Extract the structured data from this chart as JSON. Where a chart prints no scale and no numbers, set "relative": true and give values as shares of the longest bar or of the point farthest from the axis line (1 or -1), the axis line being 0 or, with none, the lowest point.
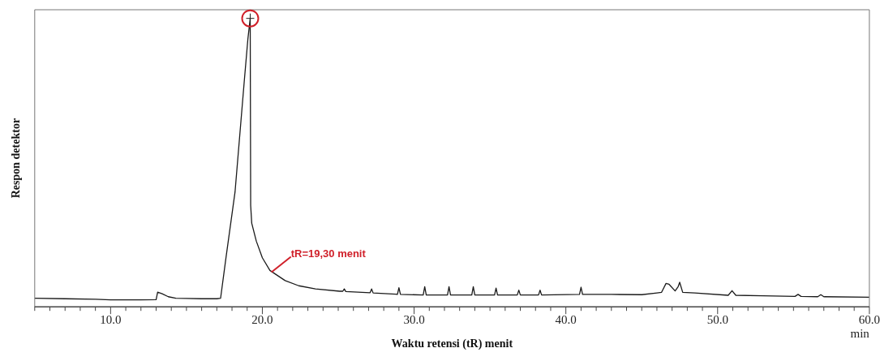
{
  "chart_data": {
    "type": "line",
    "xlabel": "Waktu retensi (tR) menit",
    "ylabel": "Respon detektor",
    "relative": true,
    "grid": false,
    "legend": false,
    "xlim": [
      5,
      60
    ],
    "xticks": [
      {
        "value": 5,
        "label": null
      },
      {
        "value": 6,
        "label": null
      },
      {
        "value": 7,
        "label": null
      },
      {
        "value": 8,
        "label": null
      },
      {
        "value": 9,
        "label": null
      },
      {
        "value": 10,
        "label": "10.0"
      },
      {
        "value": 11,
        "label": null
      },
      {
        "value": 12,
        "label": null
      },
      {
        "value": 13,
        "label": null
      },
      {
        "value": 14,
        "label": null
      },
      {
        "value": 15,
        "label": null
      },
      {
        "value": 16,
        "label": null
      },
      {
        "value": 17,
        "label": null
      },
      {
        "value": 18,
        "label": null
      },
      {
        "value": 19,
        "label": null
      },
      {
        "value": 20,
        "label": "20.0"
      },
      {
        "value": 21,
        "label": null
      },
      {
        "value": 22,
        "label": null
      },
      {
        "value": 23,
        "label": null
      },
      {
        "value": 24,
        "label": null
      },
      {
        "value": 25,
        "label": null
      },
      {
        "value": 26,
        "label": null
      },
      {
        "value": 27,
        "label": null
      },
      {
        "value": 28,
        "label": null
      },
      {
        "value": 29,
        "label": null
      },
      {
        "value": 30,
        "label": "30.0"
      },
      {
        "value": 31,
        "label": null
      },
      {
        "value": 32,
        "label": null
      },
      {
        "value": 33,
        "label": null
      },
      {
        "value": 34,
        "label": null
      },
      {
        "value": 35,
        "label": null
      },
      {
        "value": 36,
        "label": null
      },
      {
        "value": 37,
        "label": null
      },
      {
        "value": 38,
        "label": null
      },
      {
        "value": 39,
        "label": null
      },
      {
        "value": 40,
        "label": "40.0"
      },
      {
        "value": 41,
        "label": null
      },
      {
        "value": 42,
        "label": null
      },
      {
        "value": 43,
        "label": null
      },
      {
        "value": 44,
        "label": null
      },
      {
        "value": 45,
        "label": null
      },
      {
        "value": 46,
        "label": null
      },
      {
        "value": 47,
        "label": null
      },
      {
        "value": 48,
        "label": null
      },
      {
        "value": 49,
        "label": null
      },
      {
        "value": 50,
        "label": "50.0"
      },
      {
        "value": 51,
        "label": null
      },
      {
        "value": 52,
        "label": null
      },
      {
        "value": 53,
        "label": null
      },
      {
        "value": 54,
        "label": null
      },
      {
        "value": 55,
        "label": null
      },
      {
        "value": 56,
        "label": null
      },
      {
        "value": 57,
        "label": null
      },
      {
        "value": 58,
        "label": null
      },
      {
        "value": 59,
        "label": null
      },
      {
        "value": 60,
        "label": "60.0"
      }
    ],
    "annotations": [
      {
        "text": "tR=19,30 menit",
        "x": 20.6,
        "y": 0.12
      },
      "min"
    ],
    "series": [
      {
        "color": "#1a1a1a",
        "x": [
          5,
          7,
          9,
          10,
          12,
          13.0,
          13.1,
          13.4,
          13.8,
          14.3,
          15,
          16,
          17,
          17.25,
          17.6,
          18.2,
          18.8,
          19.05,
          19.2,
          19.23,
          19.3,
          19.6,
          20.0,
          20.5,
          21.5,
          22.4,
          23.5,
          25.1,
          25.3,
          25.4,
          25.5,
          27.1,
          27.2,
          27.3,
          28.8,
          28.9,
          29.0,
          29.1,
          30.6,
          30.7,
          30.8,
          32.2,
          32.3,
          32.4,
          33.8,
          33.9,
          34.0,
          35.3,
          35.4,
          35.5,
          36.8,
          36.9,
          37.0,
          38.2,
          38.3,
          38.4,
          40.9,
          41.0,
          41.1,
          43,
          45,
          46.0,
          46.3,
          46.6,
          46.8,
          47.2,
          47.4,
          47.5,
          47.7,
          48.5,
          50.7,
          50.95,
          51.2,
          53,
          55.1,
          55.3,
          55.5,
          56.6,
          56.8,
          57.0,
          60
        ],
        "values": [
          0.03,
          0.028,
          0.026,
          0.024,
          0.024,
          0.025,
          0.051,
          0.045,
          0.035,
          0.03,
          0.029,
          0.028,
          0.028,
          0.03,
          0.169,
          0.398,
          0.777,
          0.93,
          1,
          0.352,
          0.29,
          0.228,
          0.17,
          0.126,
          0.091,
          0.073,
          0.062,
          0.054,
          0.054,
          0.062,
          0.053,
          0.049,
          0.062,
          0.048,
          0.044,
          0.043,
          0.066,
          0.043,
          0.041,
          0.07,
          0.041,
          0.041,
          0.07,
          0.041,
          0.041,
          0.07,
          0.041,
          0.041,
          0.065,
          0.041,
          0.041,
          0.058,
          0.041,
          0.041,
          0.058,
          0.041,
          0.043,
          0.068,
          0.043,
          0.043,
          0.042,
          0.048,
          0.05,
          0.081,
          0.078,
          0.055,
          0.07,
          0.085,
          0.05,
          0.048,
          0.04,
          0.056,
          0.04,
          0.038,
          0.036,
          0.043,
          0.036,
          0.035,
          0.042,
          0.035,
          0.033
        ]
      }
    ]
  }
}
